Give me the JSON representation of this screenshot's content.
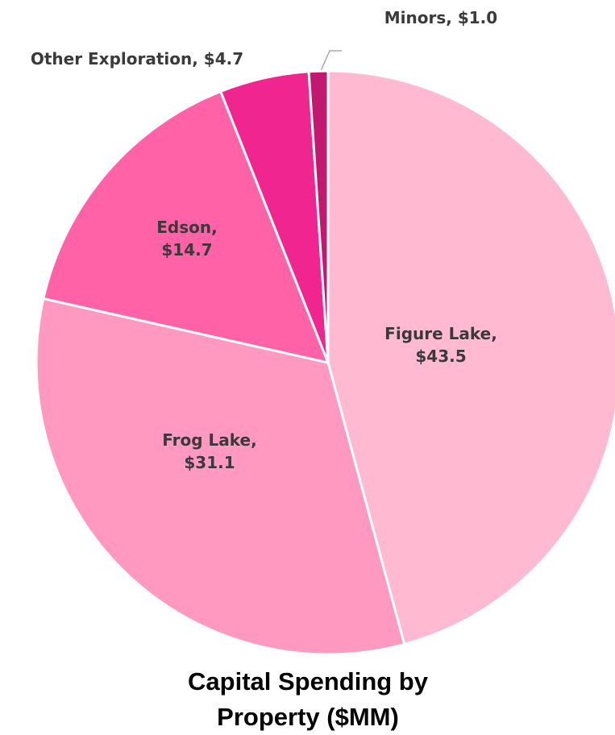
{
  "chart_data": {
    "type": "pie",
    "title": "Capital Spending by Property ($MM)",
    "values": [
      43.5,
      31.1,
      14.7,
      4.7,
      1.0
    ],
    "value_labels": [
      "Figure Lake, $43.5",
      "Frog Lake, $31.1",
      "Edson, $14.7",
      "Other Exploration, $4.7",
      "Minors, $1.0"
    ],
    "colors": [
      "#ffbad1",
      "#ff99bf",
      "#ff62a6",
      "#f0258f",
      "#c3186f"
    ]
  }
}
